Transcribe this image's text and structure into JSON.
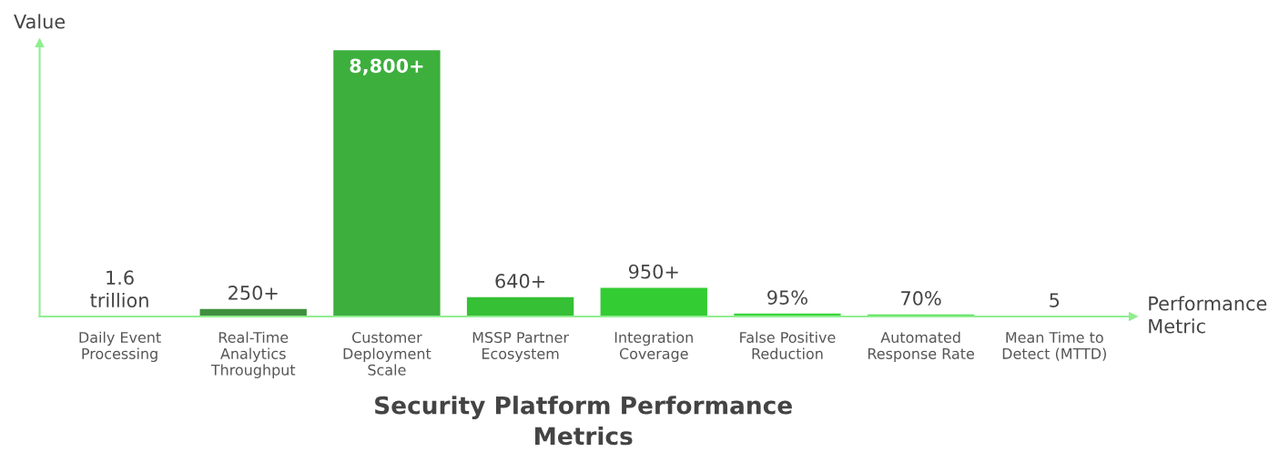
{
  "chart_data": {
    "type": "bar",
    "title": "Security Platform Performance Metrics",
    "xlabel": "Performance\nMetric",
    "ylabel": "Value",
    "ylim": [
      0,
      9040
    ],
    "categories": [
      "Daily Event\nProcessing",
      "Real-Time\nAnalytics\nThroughput",
      "Customer\nDeployment\nScale",
      "MSSP Partner\nEcosystem",
      "Integration\nCoverage",
      "False Positive\nReduction",
      "Automated\nResponse Rate",
      "Mean Time to\nDetect (MTTD)"
    ],
    "values": [
      1.6,
      250,
      8800,
      640,
      950,
      95,
      70,
      5
    ],
    "colors": [
      "#7ee87e",
      "#3f8f3f",
      "#3daf3d",
      "#35c035",
      "#33cc33",
      "#3ad43a",
      "#55e055",
      "#70e870"
    ],
    "value_labels": [
      "1.6\ntrillion",
      "250+",
      "8,800+",
      "640+",
      "950+",
      "95%",
      "70%",
      "5"
    ],
    "grid": false,
    "legend": false
  }
}
